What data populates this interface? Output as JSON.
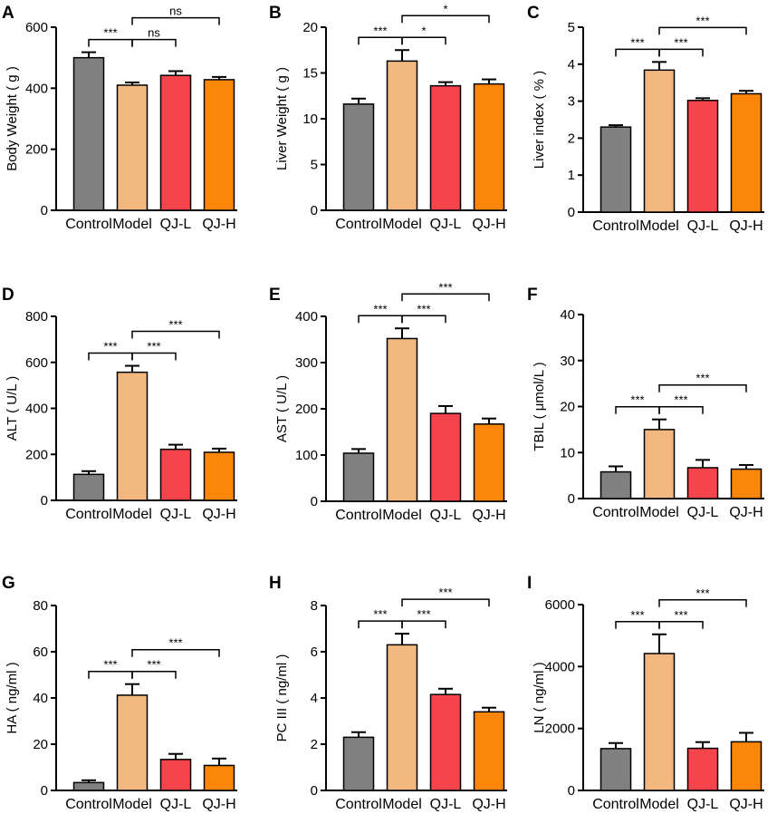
{
  "figure": {
    "categories": [
      "Control",
      "Model",
      "QJ-L",
      "QJ-H"
    ],
    "colors": [
      "#808080",
      "#f2b880",
      "#f5444c",
      "#fc8608"
    ]
  },
  "chart_data": [
    {
      "panel": "A",
      "type": "bar",
      "ylabel": "Body Weight ( g )",
      "categories": [
        "Control",
        "Model",
        "QJ-L",
        "QJ-H"
      ],
      "values": [
        500,
        410,
        442,
        428
      ],
      "errors": [
        18,
        9,
        14,
        9
      ],
      "ylim": [
        0,
        600
      ],
      "yticks": [
        0,
        200,
        400,
        600
      ],
      "tick_labels": [
        "0",
        "200",
        "400",
        "600"
      ],
      "significance": [
        {
          "from": 0,
          "to": 1,
          "label": "***",
          "level": 1
        },
        {
          "from": 1,
          "to": 2,
          "label": "ns",
          "level": 1
        },
        {
          "from": 1,
          "to": 3,
          "label": "ns",
          "level": 2
        }
      ]
    },
    {
      "panel": "B",
      "type": "bar",
      "ylabel": "Liver Weight ( g )",
      "categories": [
        "Control",
        "Model",
        "QJ-L",
        "QJ-H"
      ],
      "values": [
        11.6,
        16.3,
        13.6,
        13.8
      ],
      "errors": [
        0.6,
        1.2,
        0.4,
        0.5
      ],
      "ylim": [
        0,
        20
      ],
      "yticks": [
        0,
        5,
        10,
        15,
        20
      ],
      "tick_labels": [
        "0",
        "5",
        "10",
        "15",
        "20"
      ],
      "significance": [
        {
          "from": 0,
          "to": 1,
          "label": "***",
          "level": 1
        },
        {
          "from": 1,
          "to": 2,
          "label": "*",
          "level": 1
        },
        {
          "from": 1,
          "to": 3,
          "label": "*",
          "level": 2
        }
      ]
    },
    {
      "panel": "C",
      "type": "bar",
      "ylabel": "Liver index ( % )",
      "categories": [
        "Control",
        "Model",
        "QJ-L",
        "QJ-H"
      ],
      "values": [
        2.3,
        3.84,
        3.02,
        3.2
      ],
      "errors": [
        0.05,
        0.22,
        0.06,
        0.08
      ],
      "ylim": [
        0,
        5
      ],
      "yticks": [
        0,
        1,
        2,
        3,
        4,
        5
      ],
      "tick_labels": [
        "0",
        "1",
        "2",
        "3",
        "4",
        "5"
      ],
      "significance": [
        {
          "from": 0,
          "to": 1,
          "label": "***",
          "level": 1
        },
        {
          "from": 1,
          "to": 2,
          "label": "***",
          "level": 1
        },
        {
          "from": 1,
          "to": 3,
          "label": "***",
          "level": 2
        }
      ]
    },
    {
      "panel": "D",
      "type": "bar",
      "ylabel": "ALT ( U/L )",
      "categories": [
        "Control",
        "Model",
        "QJ-L",
        "QJ-H"
      ],
      "values": [
        113,
        557,
        222,
        209
      ],
      "errors": [
        14,
        28,
        20,
        16
      ],
      "ylim": [
        0,
        800
      ],
      "yticks": [
        0,
        200,
        400,
        600,
        800
      ],
      "tick_labels": [
        "0",
        "200",
        "400",
        "600",
        "800"
      ],
      "significance": [
        {
          "from": 0,
          "to": 1,
          "label": "***",
          "level": 1
        },
        {
          "from": 1,
          "to": 2,
          "label": "***",
          "level": 1
        },
        {
          "from": 1,
          "to": 3,
          "label": "***",
          "level": 2
        }
      ]
    },
    {
      "panel": "E",
      "type": "bar",
      "ylabel": "AST ( U/L )",
      "categories": [
        "Control",
        "Model",
        "QJ-L",
        "QJ-H"
      ],
      "values": [
        104,
        352,
        190,
        167
      ],
      "errors": [
        9,
        22,
        16,
        12
      ],
      "ylim": [
        0,
        400
      ],
      "yticks": [
        0,
        100,
        200,
        300,
        400
      ],
      "tick_labels": [
        "0",
        "100",
        "200",
        "300",
        "400"
      ],
      "significance": [
        {
          "from": 0,
          "to": 1,
          "label": "***",
          "level": 1
        },
        {
          "from": 1,
          "to": 2,
          "label": "***",
          "level": 1
        },
        {
          "from": 1,
          "to": 3,
          "label": "***",
          "level": 2
        }
      ]
    },
    {
      "panel": "F",
      "type": "bar",
      "ylabel": "TBIL ( μmol/L )",
      "categories": [
        "Control",
        "Model",
        "QJ-L",
        "QJ-H"
      ],
      "values": [
        5.8,
        15.0,
        6.7,
        6.4
      ],
      "errors": [
        1.2,
        2.2,
        1.7,
        0.9
      ],
      "ylim": [
        0,
        40
      ],
      "yticks": [
        0,
        10,
        20,
        30,
        40
      ],
      "tick_labels": [
        "0",
        "10",
        "20",
        "30",
        "40"
      ],
      "significance": [
        {
          "from": 0,
          "to": 1,
          "label": "***",
          "level": 1
        },
        {
          "from": 1,
          "to": 2,
          "label": "***",
          "level": 1
        },
        {
          "from": 1,
          "to": 3,
          "label": "***",
          "level": 2
        }
      ]
    },
    {
      "panel": "G",
      "type": "bar",
      "ylabel": "HA ( ng/ml )",
      "categories": [
        "Control",
        "Model",
        "QJ-L",
        "QJ-H"
      ],
      "values": [
        3.4,
        41.2,
        13.4,
        10.8
      ],
      "errors": [
        1.0,
        4.8,
        2.4,
        3.0
      ],
      "ylim": [
        0,
        80
      ],
      "yticks": [
        0,
        20,
        40,
        60,
        80
      ],
      "tick_labels": [
        "0",
        "20",
        "40",
        "60",
        "80"
      ],
      "significance": [
        {
          "from": 0,
          "to": 1,
          "label": "***",
          "level": 1
        },
        {
          "from": 1,
          "to": 2,
          "label": "***",
          "level": 1
        },
        {
          "from": 1,
          "to": 3,
          "label": "***",
          "level": 2
        }
      ]
    },
    {
      "panel": "H",
      "type": "bar",
      "ylabel": "PC III ( ng/ml )",
      "categories": [
        "Control",
        "Model",
        "QJ-L",
        "QJ-H"
      ],
      "values": [
        2.3,
        6.3,
        4.15,
        3.4
      ],
      "errors": [
        0.22,
        0.48,
        0.25,
        0.18
      ],
      "ylim": [
        0,
        8
      ],
      "yticks": [
        0,
        2,
        4,
        6,
        8
      ],
      "tick_labels": [
        "0",
        "2",
        "4",
        "6",
        "8"
      ],
      "significance": [
        {
          "from": 0,
          "to": 1,
          "label": "***",
          "level": 1
        },
        {
          "from": 1,
          "to": 2,
          "label": "***",
          "level": 1
        },
        {
          "from": 1,
          "to": 3,
          "label": "***",
          "level": 2
        }
      ]
    },
    {
      "panel": "I",
      "type": "bar",
      "ylabel": "LN ( ng/ml )",
      "categories": [
        "Control",
        "Model",
        "QJ-L",
        "QJ-H"
      ],
      "values": [
        1350,
        4420,
        1360,
        1570
      ],
      "errors": [
        180,
        620,
        200,
        290
      ],
      "ylim": [
        0,
        6000
      ],
      "yticks": [
        0,
        2000,
        4000,
        6000
      ],
      "tick_labels": [
        "0",
        "2000",
        "4000",
        "6000"
      ],
      "significance": [
        {
          "from": 0,
          "to": 1,
          "label": "***",
          "level": 1
        },
        {
          "from": 1,
          "to": 2,
          "label": "***",
          "level": 1
        },
        {
          "from": 1,
          "to": 3,
          "label": "***",
          "level": 2
        }
      ]
    }
  ]
}
